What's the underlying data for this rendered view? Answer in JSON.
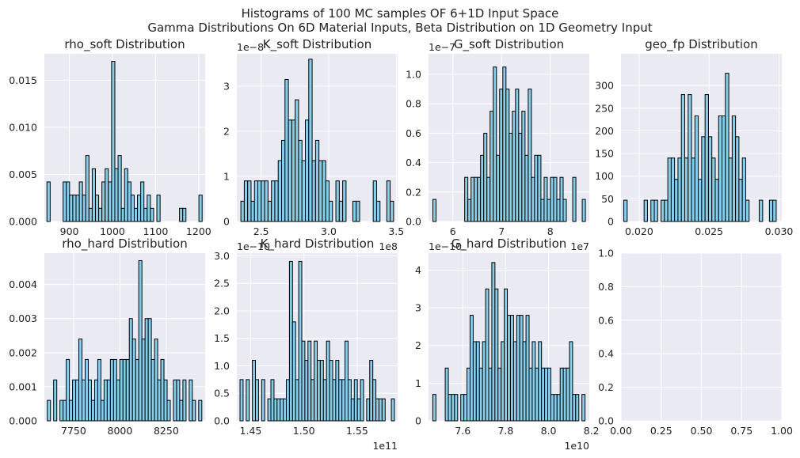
{
  "figure": {
    "title_line1": "Histograms of 100 MC samples OF 6+1D Input Space",
    "title_line2": "Gamma Distributions On 6D Material Inputs, Beta Distribution on 1D Geometry Input"
  },
  "colors": {
    "bar_fill": "#87CEEB",
    "bar_edge": "#000000",
    "axes_bg": "#EAEAF2",
    "grid": "#FFFFFF",
    "text": "#222222"
  },
  "chart_data": [
    {
      "type": "bar",
      "title": "rho_soft Distribution",
      "x_ticks": [
        900,
        1000,
        1100,
        1200
      ],
      "x_tick_labels": [
        "900",
        "1000",
        "1100",
        "1200"
      ],
      "x_offset_label": "",
      "y_ticks": [
        0,
        0.005,
        0.01,
        0.015
      ],
      "y_tick_labels": [
        "0.000",
        "0.005",
        "0.010",
        "0.015"
      ],
      "y_offset_label": "",
      "xlim": [
        842,
        1215
      ],
      "ylim": [
        0,
        0.0178
      ],
      "bin_edges_range": [
        848,
        1208
      ],
      "values": [
        0.0042,
        0,
        0,
        0,
        0,
        0.0042,
        0.0042,
        0.0028,
        0.0028,
        0.0028,
        0.0042,
        0.0028,
        0.007,
        0.0014,
        0.0056,
        0.0028,
        0.0014,
        0.0042,
        0.0056,
        0.0042,
        0.017,
        0.0056,
        0.007,
        0.0014,
        0.0056,
        0.0042,
        0.0028,
        0.0014,
        0.0028,
        0.0042,
        0.0014,
        0.0028,
        0.0014,
        0,
        0.0028,
        0,
        0,
        0,
        0,
        0,
        0,
        0.0014,
        0.0014,
        0,
        0,
        0,
        0,
        0.0028
      ]
    },
    {
      "type": "bar",
      "title": "K_soft Distribution",
      "x_ticks": [
        2.5,
        3.0,
        3.5
      ],
      "x_tick_labels": [
        "2.5",
        "3.0",
        "3.5"
      ],
      "x_offset_label": "1e8",
      "y_ticks": [
        0,
        1,
        2,
        3
      ],
      "y_tick_labels": [
        "0",
        "1",
        "2",
        "3"
      ],
      "y_offset_label": "1e−8",
      "xlim": [
        2.32,
        3.51
      ],
      "ylim": [
        0,
        3.72
      ],
      "bin_edges_range": [
        2.35,
        3.48
      ],
      "values": [
        0.45,
        0.9,
        0.9,
        0.45,
        0.9,
        0.9,
        0.9,
        0.9,
        0.45,
        0.9,
        0.9,
        1.35,
        1.8,
        3.15,
        2.25,
        2.25,
        2.7,
        1.8,
        1.35,
        2.25,
        3.6,
        1.35,
        1.8,
        1.35,
        1.35,
        0.9,
        0.45,
        0,
        0.9,
        0.45,
        0.9,
        0,
        0,
        0.45,
        0.45,
        0,
        0,
        0,
        0,
        0.9,
        0.45,
        0,
        0,
        0.9,
        0.45
      ]
    },
    {
      "type": "bar",
      "title": "G_soft Distribution",
      "x_ticks": [
        6,
        7,
        8
      ],
      "x_tick_labels": [
        "6",
        "7",
        "8"
      ],
      "x_offset_label": "1e7",
      "y_ticks": [
        0,
        0.2,
        0.4,
        0.6,
        0.8,
        1.0
      ],
      "y_tick_labels": [
        "0.0",
        "0.2",
        "0.4",
        "0.6",
        "0.8",
        "1.0"
      ],
      "y_offset_label": "1e−7",
      "xlim": [
        5.5,
        8.8
      ],
      "ylim": [
        0,
        1.14
      ],
      "bin_edges_range": [
        5.59,
        8.72
      ],
      "values": [
        0.15,
        0,
        0,
        0,
        0,
        0,
        0,
        0,
        0,
        0,
        0.3,
        0.15,
        0.3,
        0.3,
        0.3,
        0.45,
        0.6,
        0.3,
        0.75,
        1.05,
        0.45,
        0.9,
        1.05,
        0.9,
        0.6,
        0.75,
        0.9,
        0.6,
        0.75,
        0.45,
        0.9,
        0.3,
        0.45,
        0.45,
        0.15,
        0.3,
        0.15,
        0.3,
        0.3,
        0.15,
        0.3,
        0.15,
        0,
        0,
        0.3,
        0,
        0,
        0.15
      ]
    },
    {
      "type": "bar",
      "title": "geo_fp Distribution",
      "x_ticks": [
        0.02,
        0.025,
        0.03
      ],
      "x_tick_labels": [
        "0.020",
        "0.025",
        "0.030"
      ],
      "x_offset_label": "",
      "y_ticks": [
        0,
        50,
        100,
        150,
        200,
        250,
        300
      ],
      "y_tick_labels": [
        "0",
        "50",
        "100",
        "150",
        "200",
        "250",
        "300"
      ],
      "y_offset_label": "",
      "xlim": [
        0.0187,
        0.0302
      ],
      "ylim": [
        0,
        370
      ],
      "bin_edges_range": [
        0.0189,
        0.0298
      ],
      "values": [
        47,
        0,
        0,
        0,
        0,
        0,
        47,
        0,
        47,
        47,
        0,
        47,
        47,
        140,
        140,
        93,
        140,
        280,
        140,
        280,
        140,
        233,
        93,
        187,
        280,
        187,
        140,
        93,
        233,
        233,
        327,
        140,
        233,
        187,
        93,
        140,
        47,
        0,
        0,
        0,
        47,
        0,
        0,
        47,
        47
      ]
    },
    {
      "type": "bar",
      "title": "rho_hard Distribution",
      "x_ticks": [
        7750,
        8000,
        8250
      ],
      "x_tick_labels": [
        "7750",
        "8000",
        "8250"
      ],
      "x_offset_label": "",
      "y_ticks": [
        0,
        0.001,
        0.002,
        0.003,
        0.004
      ],
      "y_tick_labels": [
        "0.000",
        "0.001",
        "0.002",
        "0.003",
        "0.004"
      ],
      "y_offset_label": "",
      "xlim": [
        7592,
        8460
      ],
      "ylim": [
        0,
        0.00492
      ],
      "bin_edges_range": [
        7608,
        8442
      ],
      "values": [
        0.0006,
        0,
        0.0012,
        0,
        0.0006,
        0.0006,
        0.0018,
        0.0006,
        0.0012,
        0.0012,
        0.0024,
        0.0012,
        0.0018,
        0.0012,
        0.0006,
        0.0012,
        0.0018,
        0.0006,
        0.0012,
        0.0012,
        0.0018,
        0.0018,
        0.0012,
        0.0018,
        0.0018,
        0.0018,
        0.003,
        0.0024,
        0.0018,
        0.0047,
        0.0024,
        0.003,
        0.003,
        0.0018,
        0.0024,
        0.0012,
        0.0018,
        0.0012,
        0.0006,
        0,
        0.0012,
        0.0012,
        0.0006,
        0.0012,
        0,
        0.0012,
        0.0006,
        0,
        0.0006
      ]
    },
    {
      "type": "bar",
      "title": "K_hard Distribution",
      "x_ticks": [
        1.45,
        1.5,
        1.55
      ],
      "x_tick_labels": [
        "1.45",
        "1.50",
        "1.55"
      ],
      "x_offset_label": "1e11",
      "y_ticks": [
        0,
        0.5,
        1.0,
        1.5,
        2.0,
        2.5,
        3.0
      ],
      "y_tick_labels": [
        "0.0",
        "0.5",
        "1.0",
        "1.5",
        "2.0",
        "2.5",
        "3.0"
      ],
      "y_offset_label": "1e−10",
      "xlim": [
        1.437,
        1.588
      ],
      "ylim": [
        0,
        3.05
      ],
      "bin_edges_range": [
        1.44,
        1.585
      ],
      "values": [
        0.75,
        0,
        0.75,
        0,
        1.1,
        0.75,
        0,
        0.75,
        0,
        0.4,
        0.75,
        0.4,
        0.4,
        0.4,
        0.4,
        0.75,
        2.9,
        1.8,
        0.75,
        2.9,
        1.45,
        1.1,
        1.45,
        0.75,
        1.45,
        1.1,
        1.1,
        0.75,
        1.45,
        1.1,
        0.75,
        1.1,
        0.75,
        0.75,
        1.45,
        0.75,
        0.4,
        0.75,
        0.4,
        0.75,
        0,
        0.4,
        1.1,
        0.75,
        0.4,
        0.4,
        0.4,
        0,
        0,
        0.4
      ]
    },
    {
      "type": "bar",
      "title": "G_hard Distribution",
      "x_ticks": [
        7.6,
        7.8,
        8.0,
        8.2
      ],
      "x_tick_labels": [
        "7.6",
        "7.8",
        "8.0",
        "8.2"
      ],
      "x_offset_label": "1e10",
      "y_ticks": [
        0,
        1,
        2,
        3,
        4
      ],
      "y_tick_labels": [
        "0",
        "1",
        "2",
        "3",
        "4"
      ],
      "y_offset_label": "1e−10",
      "xlim": [
        7.44,
        8.19
      ],
      "ylim": [
        0,
        4.45
      ],
      "bin_edges_range": [
        7.46,
        8.17
      ],
      "values": [
        0.7,
        0,
        0,
        0,
        1.4,
        0.7,
        0.7,
        0.7,
        0,
        0.7,
        0.7,
        1.4,
        2.8,
        2.1,
        2.1,
        1.4,
        2.1,
        3.5,
        1.4,
        4.2,
        3.5,
        1.4,
        2.1,
        3.5,
        2.8,
        2.8,
        2.1,
        2.8,
        2.8,
        2.1,
        2.8,
        1.4,
        2.1,
        1.4,
        2.1,
        1.4,
        1.4,
        1.4,
        0.7,
        0.7,
        0.7,
        1.4,
        1.4,
        1.4,
        2.1,
        0.7,
        0.7,
        0,
        0.7
      ]
    },
    {
      "type": "empty",
      "title": "",
      "x_ticks": [
        0,
        0.25,
        0.5,
        0.75,
        1.0
      ],
      "x_tick_labels": [
        "0.00",
        "0.25",
        "0.50",
        "0.75",
        "1.00"
      ],
      "x_offset_label": "",
      "y_ticks": [
        0,
        0.2,
        0.4,
        0.6,
        0.8,
        1.0
      ],
      "y_tick_labels": [
        "0.0",
        "0.2",
        "0.4",
        "0.6",
        "0.8",
        "1.0"
      ],
      "y_offset_label": "",
      "xlim": [
        0,
        1
      ],
      "ylim": [
        0,
        1
      ],
      "values": []
    }
  ]
}
